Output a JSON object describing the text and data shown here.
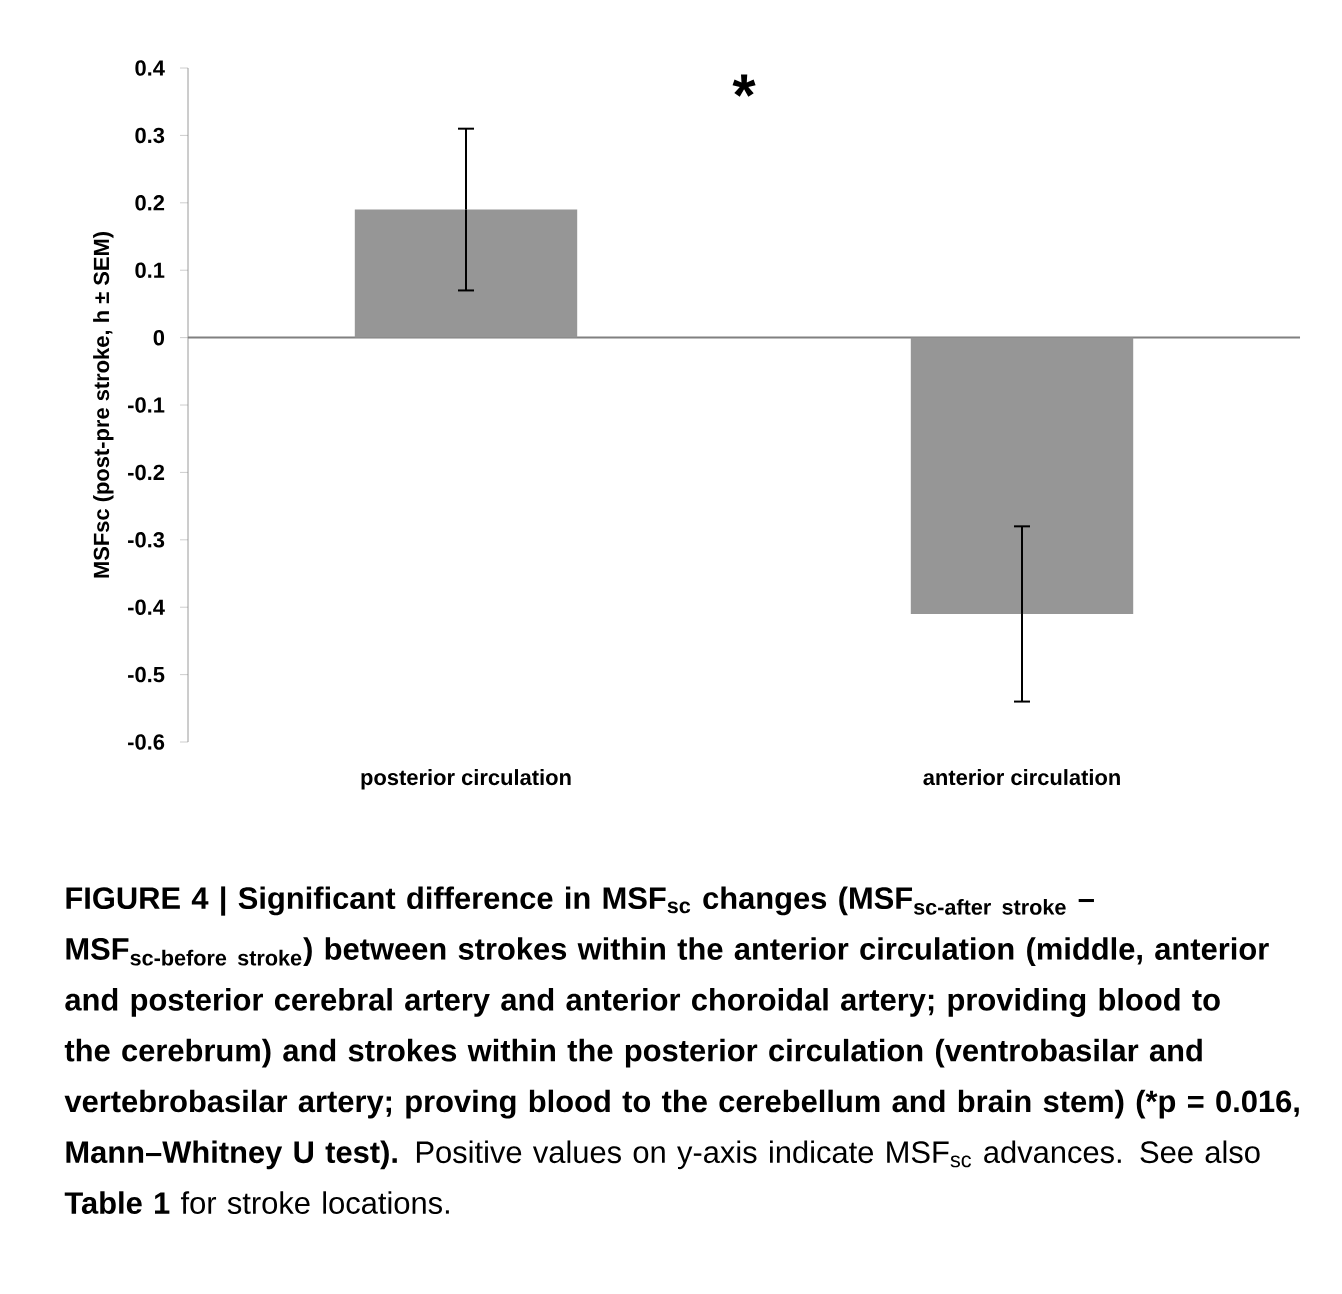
{
  "chart_data": {
    "type": "bar",
    "categories": [
      "posterior circulation",
      "anterior circulation"
    ],
    "values": [
      0.19,
      -0.41
    ],
    "errors": [
      0.12,
      0.13
    ],
    "color": "#969696",
    "ylabel": "MSFsc (post-pre stroke, h ± SEM)",
    "ylim": [
      -0.6,
      0.4
    ],
    "yticks": [
      -0.6,
      -0.5,
      -0.4,
      -0.3,
      -0.2,
      -0.1,
      0,
      0.1,
      0.2,
      0.3,
      0.4
    ],
    "annotations": [
      "*",
      "FIGURE 4 | Significant difference in MSF$_{sc}$ changes (",
      "\\textbf{MSF}_{\\textbf{sc-after stroke}}",
      "–",
      "\\textbf{MSF}_{\\textbf{sc-before stroke}}",
      ") between strokes within the anterior circulation (middle, anterior and posterior cerebral artery and anterior choroidal artery; providing blood to the cerebrum) and strokes within the posterior circulation (ventrobasilar and vertebrobasilar artery; proving blood to the cerebellum and brain stem) (*p = 0.016, Mann–Whitney U test).",
      "Positive values on y-axis indicate MSF$_{sc}$ advances. See also **Table 1** for stroke locations."
    ]
  }
}
